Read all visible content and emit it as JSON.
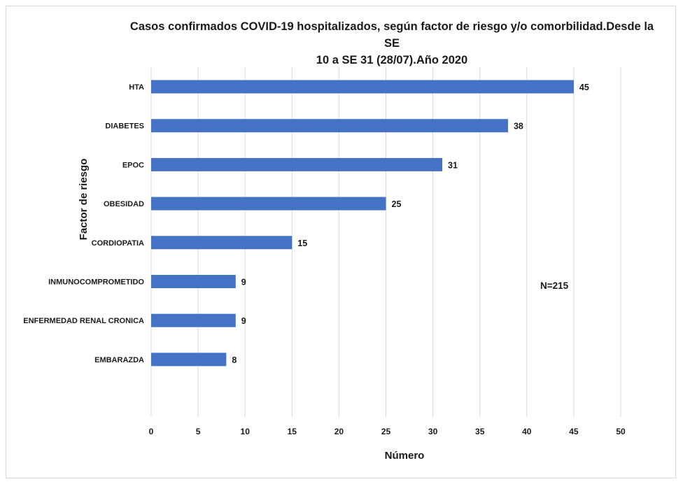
{
  "chart_data": {
    "type": "bar",
    "orientation": "horizontal",
    "title": "Casos confirmados COVID-19 hospitalizados, según factor de riesgo y/o comorbilidad.Desde la SE\n10 a SE 31 (28/07).Año 2020",
    "xlabel": "Número",
    "ylabel": "Factor de riesgo",
    "categories": [
      "HTA",
      "DIABETES",
      "EPOC",
      "OBESIDAD",
      "CORDIOPATIA",
      "INMUNOCOMPROMETIDO",
      "ENFERMEDAD RENAL CRONICA",
      "EMBARAZDA"
    ],
    "values": [
      45,
      38,
      31,
      25,
      15,
      9,
      9,
      8
    ],
    "xlim": [
      0,
      50
    ],
    "xticks": [
      0,
      5,
      10,
      15,
      20,
      25,
      30,
      35,
      40,
      45,
      50
    ],
    "grid": true,
    "annotation": "N=215",
    "bar_color": "#4472C4"
  }
}
